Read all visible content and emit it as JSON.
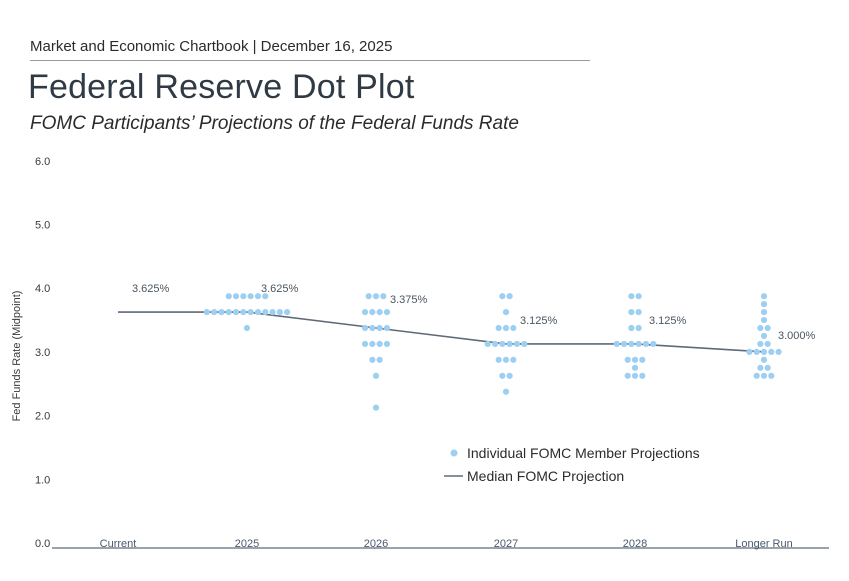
{
  "header": {
    "kicker": "Market and Economic Chartbook | December 16, 2025",
    "title": "Federal Reserve Dot Plot",
    "subtitle": "FOMC Participants’ Projections of the Federal Funds Rate"
  },
  "colors": {
    "dot": "#9dcff2",
    "median_line": "#5e6a78",
    "axis": "#5e6a78"
  },
  "chart_data": {
    "type": "scatter",
    "ylabel": "Fed Funds Rate (Midpoint)",
    "ylim": [
      0,
      6
    ],
    "yticks": [
      "0.0",
      "1.0",
      "2.0",
      "3.0",
      "4.0",
      "5.0",
      "6.0"
    ],
    "categories": [
      "Current",
      "2025",
      "2026",
      "2027",
      "2028",
      "Longer Run"
    ],
    "median": {
      "name": "Median FOMC Projection",
      "values": [
        3.625,
        3.625,
        3.375,
        3.125,
        3.125,
        3.0
      ],
      "labels": [
        "3.625%",
        "3.625%",
        "3.375%",
        "3.125%",
        "3.125%",
        "3.000%"
      ]
    },
    "dots": {
      "name": "Individual FOMC Member Projections",
      "rows": [
        {
          "category": "2025",
          "rate": 3.875,
          "count": 6
        },
        {
          "category": "2025",
          "rate": 3.625,
          "count": 12
        },
        {
          "category": "2025",
          "rate": 3.375,
          "count": 1
        },
        {
          "category": "2026",
          "rate": 3.875,
          "count": 3
        },
        {
          "category": "2026",
          "rate": 3.625,
          "count": 4
        },
        {
          "category": "2026",
          "rate": 3.375,
          "count": 4
        },
        {
          "category": "2026",
          "rate": 3.125,
          "count": 4
        },
        {
          "category": "2026",
          "rate": 2.875,
          "count": 2
        },
        {
          "category": "2026",
          "rate": 2.625,
          "count": 1
        },
        {
          "category": "2026",
          "rate": 2.125,
          "count": 1
        },
        {
          "category": "2027",
          "rate": 3.875,
          "count": 2
        },
        {
          "category": "2027",
          "rate": 3.625,
          "count": 1
        },
        {
          "category": "2027",
          "rate": 3.375,
          "count": 3
        },
        {
          "category": "2027",
          "rate": 3.125,
          "count": 6
        },
        {
          "category": "2027",
          "rate": 2.875,
          "count": 3
        },
        {
          "category": "2027",
          "rate": 2.625,
          "count": 2
        },
        {
          "category": "2027",
          "rate": 2.375,
          "count": 1
        },
        {
          "category": "2028",
          "rate": 3.875,
          "count": 2
        },
        {
          "category": "2028",
          "rate": 3.625,
          "count": 2
        },
        {
          "category": "2028",
          "rate": 3.375,
          "count": 2
        },
        {
          "category": "2028",
          "rate": 3.125,
          "count": 6
        },
        {
          "category": "2028",
          "rate": 2.875,
          "count": 3
        },
        {
          "category": "2028",
          "rate": 2.75,
          "count": 1
        },
        {
          "category": "2028",
          "rate": 2.625,
          "count": 3
        },
        {
          "category": "Longer Run",
          "rate": 3.875,
          "count": 1
        },
        {
          "category": "Longer Run",
          "rate": 3.75,
          "count": 1
        },
        {
          "category": "Longer Run",
          "rate": 3.625,
          "count": 1
        },
        {
          "category": "Longer Run",
          "rate": 3.5,
          "count": 1
        },
        {
          "category": "Longer Run",
          "rate": 3.375,
          "count": 2
        },
        {
          "category": "Longer Run",
          "rate": 3.25,
          "count": 1
        },
        {
          "category": "Longer Run",
          "rate": 3.125,
          "count": 2
        },
        {
          "category": "Longer Run",
          "rate": 3.0,
          "count": 5
        },
        {
          "category": "Longer Run",
          "rate": 2.875,
          "count": 1
        },
        {
          "category": "Longer Run",
          "rate": 2.75,
          "count": 2
        },
        {
          "category": "Longer Run",
          "rate": 2.625,
          "count": 3
        }
      ]
    },
    "legend": {
      "position": "bottom-right",
      "items": [
        "Individual FOMC Member Projections",
        "Median FOMC Projection"
      ]
    }
  }
}
